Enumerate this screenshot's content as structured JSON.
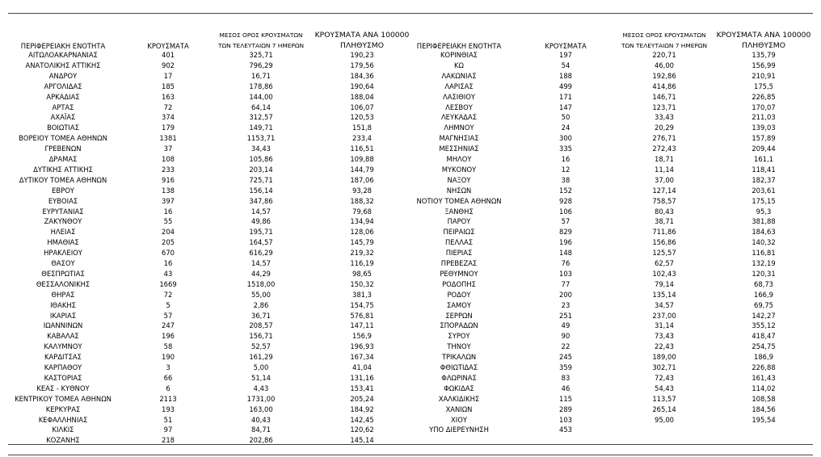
{
  "table": {
    "header": [
      [
        "ΠΕΡΙΦΕΡΕΙΑΚΗ ΕΝΟΤΗΤΑ"
      ],
      [
        "ΚΡΟΥΣΜΑΤΑ"
      ],
      [
        "ΜΕΣΟΣ ΟΡΟΣ ΚΡΟΥΣΜΑΤΩΝ",
        "ΤΩΝ ΤΕΛΕΥΤΑΙΩΝ 7 ΗΜΕΡΩΝ"
      ],
      [
        "ΚΡΟΥΣΜΑΤΑ ΑΝΑ 100000",
        "ΠΛΗΘΥΣΜΟ"
      ]
    ],
    "left_rows": [
      [
        "ΑΙΤΩΛΟΑΚΑΡΝΑΝΙΑΣ",
        "401",
        "325,71",
        "190,23"
      ],
      [
        "ΑΝΑΤΟΛΙΚΗΣ ΑΤΤΙΚΗΣ",
        "902",
        "796,29",
        "179,56"
      ],
      [
        "ΑΝΔΡΟΥ",
        "17",
        "16,71",
        "184,36"
      ],
      [
        "ΑΡΓΟΛΙΔΑΣ",
        "185",
        "178,86",
        "190,64"
      ],
      [
        "ΑΡΚΑΔΙΑΣ",
        "163",
        "144,00",
        "188,04"
      ],
      [
        "ΑΡΤΑΣ",
        "72",
        "64,14",
        "106,07"
      ],
      [
        "ΑΧΑΪΑΣ",
        "374",
        "312,57",
        "120,53"
      ],
      [
        "ΒΟΙΩΤΙΑΣ",
        "179",
        "149,71",
        "151,8"
      ],
      [
        "ΒΟΡΕΙΟΥ ΤΟΜΕΑ ΑΘΗΝΩΝ",
        "1381",
        "1153,71",
        "233,4"
      ],
      [
        "ΓΡΕΒΕΝΩΝ",
        "37",
        "34,43",
        "116,51"
      ],
      [
        "ΔΡΑΜΑΣ",
        "108",
        "105,86",
        "109,88"
      ],
      [
        "ΔΥΤΙΚΗΣ ΑΤΤΙΚΗΣ",
        "233",
        "203,14",
        "144,79"
      ],
      [
        "ΔΥΤΙΚΟΥ ΤΟΜΕΑ ΑΘΗΝΩΝ",
        "916",
        "725,71",
        "187,06"
      ],
      [
        "ΕΒΡΟΥ",
        "138",
        "156,14",
        "93,28"
      ],
      [
        "ΕΥΒΟΙΑΣ",
        "397",
        "347,86",
        "188,32"
      ],
      [
        "ΕΥΡΥΤΑΝΙΑΣ",
        "16",
        "14,57",
        "79,68"
      ],
      [
        "ΖΑΚΥΝΘΟΥ",
        "55",
        "49,86",
        "134,94"
      ],
      [
        "ΗΛΕΙΑΣ",
        "204",
        "195,71",
        "128,06"
      ],
      [
        "ΗΜΑΘΙΑΣ",
        "205",
        "164,57",
        "145,79"
      ],
      [
        "ΗΡΑΚΛΕΙΟΥ",
        "670",
        "616,29",
        "219,32"
      ],
      [
        "ΘΑΣΟΥ",
        "16",
        "14,57",
        "116,19"
      ],
      [
        "ΘΕΣΠΡΩΤΙΑΣ",
        "43",
        "44,29",
        "98,65"
      ],
      [
        "ΘΕΣΣΑΛΟΝΙΚΗΣ",
        "1669",
        "1518,00",
        "150,32"
      ],
      [
        "ΘΗΡΑΣ",
        "72",
        "55,00",
        "381,3"
      ],
      [
        "ΙΘΑΚΗΣ",
        "5",
        "2,86",
        "154,75"
      ],
      [
        "ΙΚΑΡΙΑΣ",
        "57",
        "36,71",
        "576,81"
      ],
      [
        "ΙΩΑΝΝΙΝΩΝ",
        "247",
        "208,57",
        "147,11"
      ],
      [
        "ΚΑΒΑΛΑΣ",
        "196",
        "156,71",
        "156,9"
      ],
      [
        "ΚΑΛΥΜΝΟΥ",
        "58",
        "52,57",
        "196,93"
      ],
      [
        "ΚΑΡΔΙΤΣΑΣ",
        "190",
        "161,29",
        "167,34"
      ],
      [
        "ΚΑΡΠΑΘΟΥ",
        "3",
        "5,00",
        "41,04"
      ],
      [
        "ΚΑΣΤΟΡΙΑΣ",
        "66",
        "51,14",
        "131,16"
      ],
      [
        "ΚΕΑΣ - ΚΥΘΝΟΥ",
        "6",
        "4,43",
        "153,41"
      ],
      [
        "ΚΕΝΤΡΙΚΟΥ ΤΟΜΕΑ ΑΘΗΝΩΝ",
        "2113",
        "1731,00",
        "205,24"
      ],
      [
        "ΚΕΡΚΥΡΑΣ",
        "193",
        "163,00",
        "184,92"
      ],
      [
        "ΚΕΦΑΛΛΗΝΙΑΣ",
        "51",
        "40,43",
        "142,45"
      ],
      [
        "ΚΙΛΚΙΣ",
        "97",
        "84,71",
        "120,62"
      ],
      [
        "ΚΟΖΑΝΗΣ",
        "218",
        "202,86",
        "145,14"
      ]
    ],
    "right_rows": [
      [
        "ΚΟΡΙΝΘΙΑΣ",
        "197",
        "220,71",
        "135,79"
      ],
      [
        "ΚΩ",
        "54",
        "46,00",
        "156,99"
      ],
      [
        "ΛΑΚΩΝΙΑΣ",
        "188",
        "192,86",
        "210,91"
      ],
      [
        "ΛΑΡΙΣΑΣ",
        "499",
        "414,86",
        "175,5"
      ],
      [
        "ΛΑΣΙΘΙΟΥ",
        "171",
        "146,71",
        "226,85"
      ],
      [
        "ΛΕΣΒΟΥ",
        "147",
        "123,71",
        "170,07"
      ],
      [
        "ΛΕΥΚΑΔΑΣ",
        "50",
        "33,43",
        "211,03"
      ],
      [
        "ΛΗΜΝΟΥ",
        "24",
        "20,29",
        "139,03"
      ],
      [
        "ΜΑΓΝΗΣΙΑΣ",
        "300",
        "276,71",
        "157,89"
      ],
      [
        "ΜΕΣΣΗΝΙΑΣ",
        "335",
        "272,43",
        "209,44"
      ],
      [
        "ΜΗΛΟΥ",
        "16",
        "18,71",
        "161,1"
      ],
      [
        "ΜΥΚΟΝΟΥ",
        "12",
        "11,14",
        "118,41"
      ],
      [
        "ΝΑΞΟΥ",
        "38",
        "37,00",
        "182,37"
      ],
      [
        "ΝΗΣΩΝ",
        "152",
        "127,14",
        "203,61"
      ],
      [
        "ΝΟΤΙΟΥ ΤΟΜΕΑ ΑΘΗΝΩΝ",
        "928",
        "758,57",
        "175,15"
      ],
      [
        "ΞΑΝΘΗΣ",
        "106",
        "80,43",
        "95,3"
      ],
      [
        "ΠΑΡΟΥ",
        "57",
        "38,71",
        "381,88"
      ],
      [
        "ΠΕΙΡΑΙΩΣ",
        "829",
        "711,86",
        "184,63"
      ],
      [
        "ΠΕΛΛΑΣ",
        "196",
        "156,86",
        "140,32"
      ],
      [
        "ΠΙΕΡΙΑΣ",
        "148",
        "125,57",
        "116,81"
      ],
      [
        "ΠΡΕΒΕΖΑΣ",
        "76",
        "62,57",
        "132,19"
      ],
      [
        "ΡΕΘΥΜΝΟΥ",
        "103",
        "102,43",
        "120,31"
      ],
      [
        "ΡΟΔΟΠΗΣ",
        "77",
        "79,14",
        "68,73"
      ],
      [
        "ΡΟΔΟΥ",
        "200",
        "135,14",
        "166,9"
      ],
      [
        "ΣΑΜΟΥ",
        "23",
        "34,57",
        "69,75"
      ],
      [
        "ΣΕΡΡΩΝ",
        "251",
        "237,00",
        "142,27"
      ],
      [
        "ΣΠΟΡΑΔΩΝ",
        "49",
        "31,14",
        "355,12"
      ],
      [
        "ΣΥΡΟΥ",
        "90",
        "73,43",
        "418,47"
      ],
      [
        "ΤΗΝΟΥ",
        "22",
        "22,43",
        "254,75"
      ],
      [
        "ΤΡΙΚΑΛΩΝ",
        "245",
        "189,00",
        "186,9"
      ],
      [
        "ΦΘΙΩΤΙΔΑΣ",
        "359",
        "302,71",
        "226,88"
      ],
      [
        "ΦΛΩΡΙΝΑΣ",
        "83",
        "72,43",
        "161,43"
      ],
      [
        "ΦΩΚΙΔΑΣ",
        "46",
        "54,43",
        "114,02"
      ],
      [
        "ΧΑΛΚΙΔΙΚΗΣ",
        "115",
        "113,57",
        "108,58"
      ],
      [
        "ΧΑΝΙΩΝ",
        "289",
        "265,14",
        "184,56"
      ],
      [
        "ΧΙΟΥ",
        "103",
        "95,00",
        "195,54"
      ],
      [
        "ΥΠΟ ΔΙΕΡΕΥΝΗΣΗ",
        "453"
      ]
    ]
  }
}
